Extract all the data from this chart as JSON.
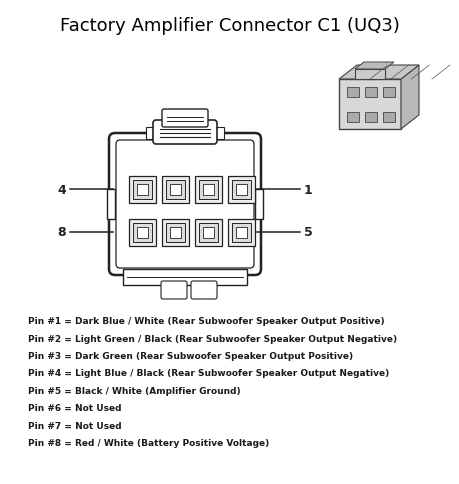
{
  "title": "Factory Amplifier Connector C1 (UQ3)",
  "title_fontsize": 13,
  "title_color": "#000000",
  "bg_color": "#ffffff",
  "pin_labels": [
    "Pin #1 = Dark Blue / White (Rear Subwoofer Speaker Output Positive)",
    "Pin #2 = Light Green / Black (Rear Subwoofer Speaker Output Negative)",
    "Pin #3 = Dark Green (Rear Subwoofer Speaker Output Positive)",
    "Pin #4 = Light Blue / Black (Rear Subwoofer Speaker Output Negative)",
    "Pin #5 = Black / White (Amplifier Ground)",
    "Pin #6 = Not Used",
    "Pin #7 = Not Used",
    "Pin #8 = Red / White (Battery Positive Voltage)"
  ],
  "pin_label_fontsize": 6.5,
  "connector_color": "#222222",
  "label_color": "#1a1a1a"
}
